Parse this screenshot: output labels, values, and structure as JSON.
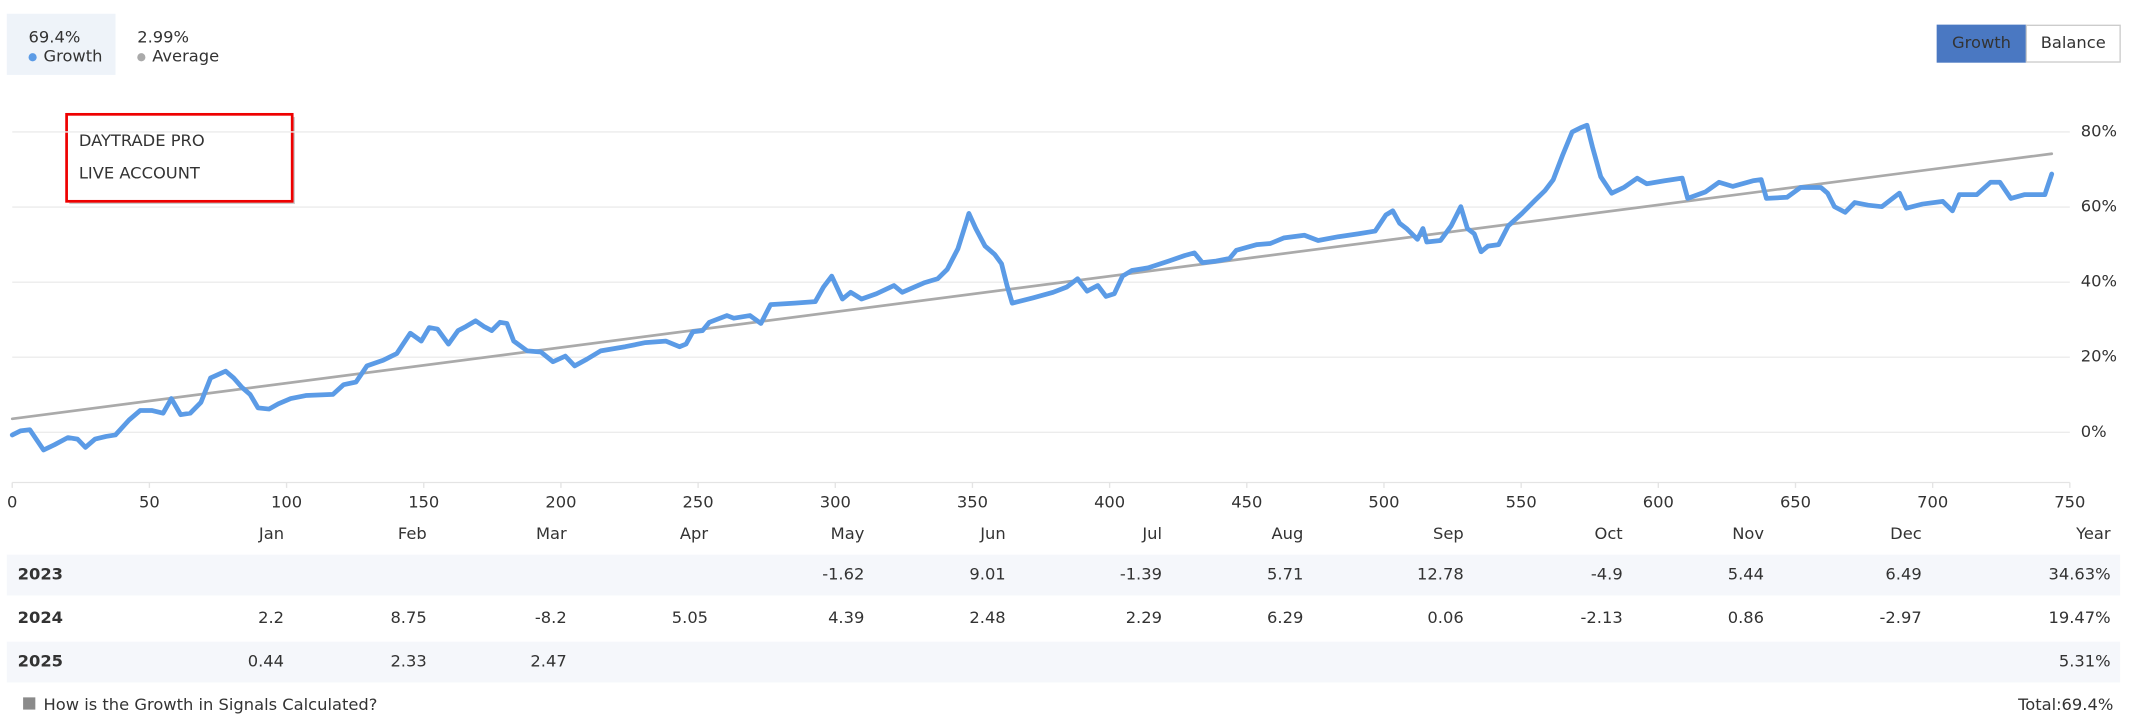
{
  "header": {
    "stat_values": [
      "69.4%",
      "2.99%"
    ]
  },
  "buttons": [
    "Growth",
    "Balance"
  ],
  "chart_data": {
    "type": "line",
    "annotation": [
      "DAYTRADE PRO",
      "LIVE ACCOUNT"
    ],
    "xlim": [
      0,
      750
    ],
    "xticks": [
      0,
      50,
      100,
      150,
      200,
      250,
      300,
      350,
      400,
      450,
      500,
      550,
      600,
      650,
      700,
      750
    ],
    "ylim": [
      -13,
      86
    ],
    "yticks": [
      {
        "value": 0,
        "label": "0%"
      },
      {
        "value": 20,
        "label": "20%"
      },
      {
        "value": 40,
        "label": "40%"
      },
      {
        "value": 60,
        "label": "60%"
      },
      {
        "value": 80,
        "label": "80%"
      }
    ],
    "grid": true,
    "series": [
      {
        "name": "Growth",
        "color": "#5b9be6",
        "x": [
          0,
          3,
          6.4,
          11.4,
          15.4,
          20.3,
          23.8,
          26.7,
          30.2,
          34.2,
          37.6,
          42.6,
          46.6,
          51,
          55,
          58,
          61.4,
          64.9,
          68.8,
          72.3,
          77.8,
          80.7,
          83.7,
          86.7,
          89.6,
          93.6,
          97,
          101.5,
          107,
          116.9,
          120.8,
          125.3,
          129.3,
          135.2,
          140.2,
          145.1,
          149.1,
          152,
          155,
          159,
          162.5,
          165.4,
          168.9,
          171.9,
          174.8,
          177.8,
          180.3,
          182.8,
          187.7,
          192.7,
          197.1,
          201.6,
          205,
          209.5,
          214.5,
          223.4,
          230.8,
          238.2,
          243.2,
          245.6,
          248.1,
          251.6,
          254.1,
          260.5,
          263,
          268.9,
          272.9,
          276.4,
          285.3,
          292.7,
          295.7,
          298.7,
          302.6,
          305.6,
          309.6,
          315,
          321.4,
          324.4,
          332.3,
          337.3,
          340.8,
          344.7,
          347.2,
          348.7,
          351.2,
          354.6,
          358.1,
          360.6,
          362.6,
          364.5,
          372,
          379.4,
          384.4,
          388.3,
          391.8,
          395.7,
          398.7,
          401.7,
          404.7,
          408.1,
          414,
          421.5,
          427.4,
          430.9,
          433.8,
          438.8,
          443.7,
          446.2,
          453.7,
          458.6,
          463.6,
          471,
          476,
          483.4,
          490.8,
          496.8,
          500.7,
          503.2,
          505.7,
          508.2,
          512.2,
          514.2,
          515.6,
          520.6,
          524.5,
          528,
          530.4,
          532.9,
          535.4,
          537.9,
          541.8,
          545.3,
          550.3,
          555.2,
          558.7,
          561.7,
          565.1,
          568.6,
          571.6,
          574,
          576,
          579,
          583,
          587.4,
          592.3,
          595.8,
          602.3,
          608.7,
          610.7,
          617.1,
          622.1,
          627.1,
          634.5,
          637.5,
          639.4,
          646.9,
          651.8,
          659.3,
          661.7,
          664.2,
          668.1,
          671.6,
          676.5,
          681.5,
          685.4,
          687.9,
          690.4,
          696.3,
          703.7,
          707.2,
          709.7,
          716.1,
          721.1,
          724.5,
          728.5,
          733.4,
          740.9,
          743.4
        ],
        "values": [
          -0.7,
          0.4,
          0.7,
          -4.7,
          -3.3,
          -1.4,
          -1.8,
          -4,
          -1.8,
          -1.1,
          -0.7,
          3.3,
          5.8,
          5.8,
          5.1,
          9,
          4.7,
          5.1,
          8,
          14.5,
          16.3,
          14.5,
          12,
          10.1,
          6.5,
          6.2,
          7.6,
          9,
          9.8,
          10.1,
          12.7,
          13.4,
          17.7,
          19.2,
          21,
          26.4,
          24.3,
          27.9,
          27.5,
          23.5,
          27.1,
          28.2,
          29.7,
          28.2,
          27.1,
          29.3,
          29,
          24.3,
          21.7,
          21.4,
          18.8,
          20.3,
          17.7,
          19.5,
          21.7,
          22.8,
          23.9,
          24.3,
          22.8,
          23.5,
          26.8,
          27.1,
          29.3,
          31.1,
          30.4,
          31.1,
          29,
          34,
          34.4,
          34.8,
          38.7,
          41.6,
          35.5,
          37.3,
          35.5,
          36.9,
          39.1,
          37.3,
          39.8,
          40.9,
          43.4,
          48.9,
          54.7,
          58.3,
          54.3,
          49.6,
          47.4,
          44.9,
          39.1,
          34.4,
          35.8,
          37.3,
          38.7,
          40.9,
          37.6,
          39.1,
          36.2,
          36.9,
          41.6,
          43.1,
          43.8,
          45.6,
          47.1,
          47.8,
          45.2,
          45.6,
          46.3,
          48.5,
          50,
          50.3,
          51.8,
          52.5,
          51.1,
          52.1,
          52.9,
          53.6,
          57.9,
          59,
          55.7,
          54.3,
          51.4,
          54.3,
          50.7,
          51.1,
          55,
          60.1,
          54.3,
          52.9,
          48.1,
          49.6,
          50,
          55,
          58.3,
          61.9,
          64.4,
          67.3,
          73.8,
          80,
          81.1,
          81.8,
          76,
          68.1,
          63.7,
          65.2,
          67.7,
          66.2,
          67,
          67.7,
          62.3,
          64,
          66.6,
          65.5,
          67,
          67.3,
          62.3,
          62.6,
          65.2,
          65.2,
          63.7,
          60.1,
          58.6,
          61.2,
          60.5,
          60.1,
          62.3,
          63.7,
          59.7,
          60.8,
          61.5,
          59,
          63.3,
          63.3,
          66.6,
          66.6,
          62.3,
          63.3,
          63.3,
          68.8
        ]
      },
      {
        "name": "Average",
        "color": "#aaaaaa",
        "x": [
          0,
          743.4
        ],
        "values": [
          3.6,
          74.2
        ]
      }
    ]
  },
  "table": {
    "months": [
      "Jan",
      "Feb",
      "Mar",
      "Apr",
      "May",
      "Jun",
      "Jul",
      "Aug",
      "Sep",
      "Oct",
      "Nov",
      "Dec"
    ],
    "year_header": "Year",
    "rows": [
      {
        "year": "2023",
        "values": [
          null,
          null,
          null,
          null,
          -1.62,
          9.01,
          -1.39,
          5.71,
          12.78,
          -4.9,
          5.44,
          6.49
        ],
        "total": "34.63%"
      },
      {
        "year": "2024",
        "values": [
          2.2,
          8.75,
          -8.2,
          5.05,
          4.39,
          2.48,
          2.29,
          6.29,
          0.06,
          -2.13,
          0.86,
          -2.97
        ],
        "total": "19.47%"
      },
      {
        "year": "2025",
        "values": [
          0.44,
          2.33,
          2.47,
          null,
          null,
          null,
          null,
          null,
          null,
          null,
          null,
          null
        ],
        "total": "5.31%"
      }
    ]
  },
  "footer": {
    "link": "How is the Growth in Signals Calculated?",
    "total_label": "Total:",
    "total_value": "69.4%"
  }
}
